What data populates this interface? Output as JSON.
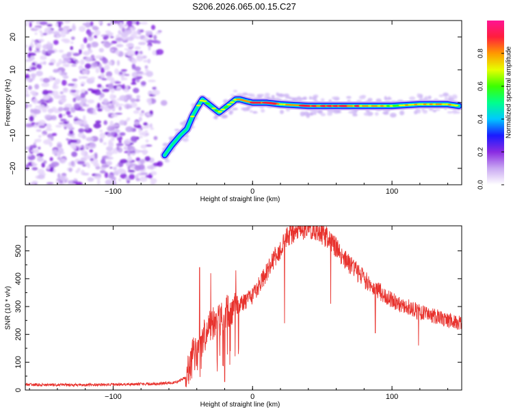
{
  "title": "S206.2026.065.00.15.C27",
  "chart_data": [
    {
      "type": "heatmap",
      "name": "spectrogram",
      "xlabel": "Height of straight line (km)",
      "ylabel": "Frequency (Hz)",
      "xlim": [
        -163,
        150
      ],
      "ylim": [
        -25,
        25
      ],
      "xticks": [
        -100,
        0,
        100
      ],
      "yticks": [
        -20,
        -10,
        0,
        10,
        20
      ],
      "colorbar": {
        "label": "Normalized spectral amplitude",
        "range": [
          0,
          1
        ],
        "ticks": [
          0.0,
          0.2,
          0.4,
          0.6,
          0.8
        ],
        "colors": [
          "#ffffff",
          "#c9a8f2",
          "#8a2be2",
          "#1a1aff",
          "#00c8ff",
          "#00ff8c",
          "#3cff00",
          "#e6ff00",
          "#ff9900",
          "#ff1e3c",
          "#ff1493"
        ]
      },
      "ridge": {
        "x": [
          -63,
          -58,
          -52,
          -47,
          -43,
          -39,
          -36,
          -33,
          -30,
          -27,
          -24,
          -21,
          -18,
          -15,
          -12,
          -9,
          -5,
          0,
          10,
          20,
          40,
          60,
          80,
          100,
          120,
          140,
          148
        ],
        "y": [
          -16,
          -13,
          -10,
          -8,
          -4,
          -1,
          1,
          0,
          -1,
          -2,
          -3,
          -2,
          -1,
          0,
          1,
          1,
          0.5,
          0,
          0,
          -0.5,
          -1,
          -1,
          -1,
          -1,
          -0.5,
          -0.5,
          -1
        ],
        "amplitude": [
          0.35,
          0.4,
          0.45,
          0.55,
          0.6,
          0.65,
          0.7,
          0.7,
          0.6,
          0.55,
          0.55,
          0.6,
          0.65,
          0.75,
          0.85,
          0.9,
          0.95,
          1.0,
          1.0,
          0.9,
          1.0,
          1.0,
          0.9,
          0.7,
          0.75,
          0.8,
          0.7
        ]
      },
      "noise_region_x": [
        -163,
        -60
      ]
    },
    {
      "type": "line",
      "name": "snr",
      "xlabel": "Height of straight line (km)",
      "ylabel": "SNR (10 * v/v)",
      "xlim": [
        -163,
        150
      ],
      "ylim": [
        0,
        590
      ],
      "xticks": [
        -100,
        0,
        100
      ],
      "yticks": [
        0,
        100,
        200,
        300,
        400,
        500
      ],
      "color": "#e8322d",
      "series": [
        {
          "name": "SNR",
          "x": [
            -163,
            -130,
            -100,
            -70,
            -55,
            -48,
            -45,
            -42,
            -40,
            -38,
            -36,
            -34,
            -30,
            -27,
            -25,
            -22,
            -20,
            -15,
            -10,
            -5,
            0,
            5,
            10,
            15,
            20,
            25,
            30,
            35,
            40,
            45,
            50,
            55,
            60,
            70,
            80,
            90,
            100,
            110,
            120,
            130,
            140,
            150
          ],
          "y": [
            20,
            18,
            20,
            22,
            28,
            45,
            80,
            150,
            140,
            170,
            180,
            200,
            230,
            250,
            240,
            260,
            280,
            290,
            300,
            320,
            340,
            380,
            420,
            470,
            510,
            550,
            570,
            580,
            585,
            575,
            560,
            540,
            510,
            450,
            400,
            360,
            320,
            300,
            280,
            265,
            250,
            240
          ]
        }
      ],
      "dips": [
        {
          "x": -20,
          "y": 30
        },
        {
          "x": -16,
          "y": 140
        },
        {
          "x": -10,
          "y": 150
        },
        {
          "x": 23,
          "y": 240
        },
        {
          "x": 56,
          "y": 310
        },
        {
          "x": 88,
          "y": 205
        },
        {
          "x": 119,
          "y": 160
        }
      ],
      "spikes": [
        {
          "x": -38,
          "y": 440
        },
        {
          "x": -30,
          "y": 420
        },
        {
          "x": -12,
          "y": 430
        }
      ]
    }
  ]
}
